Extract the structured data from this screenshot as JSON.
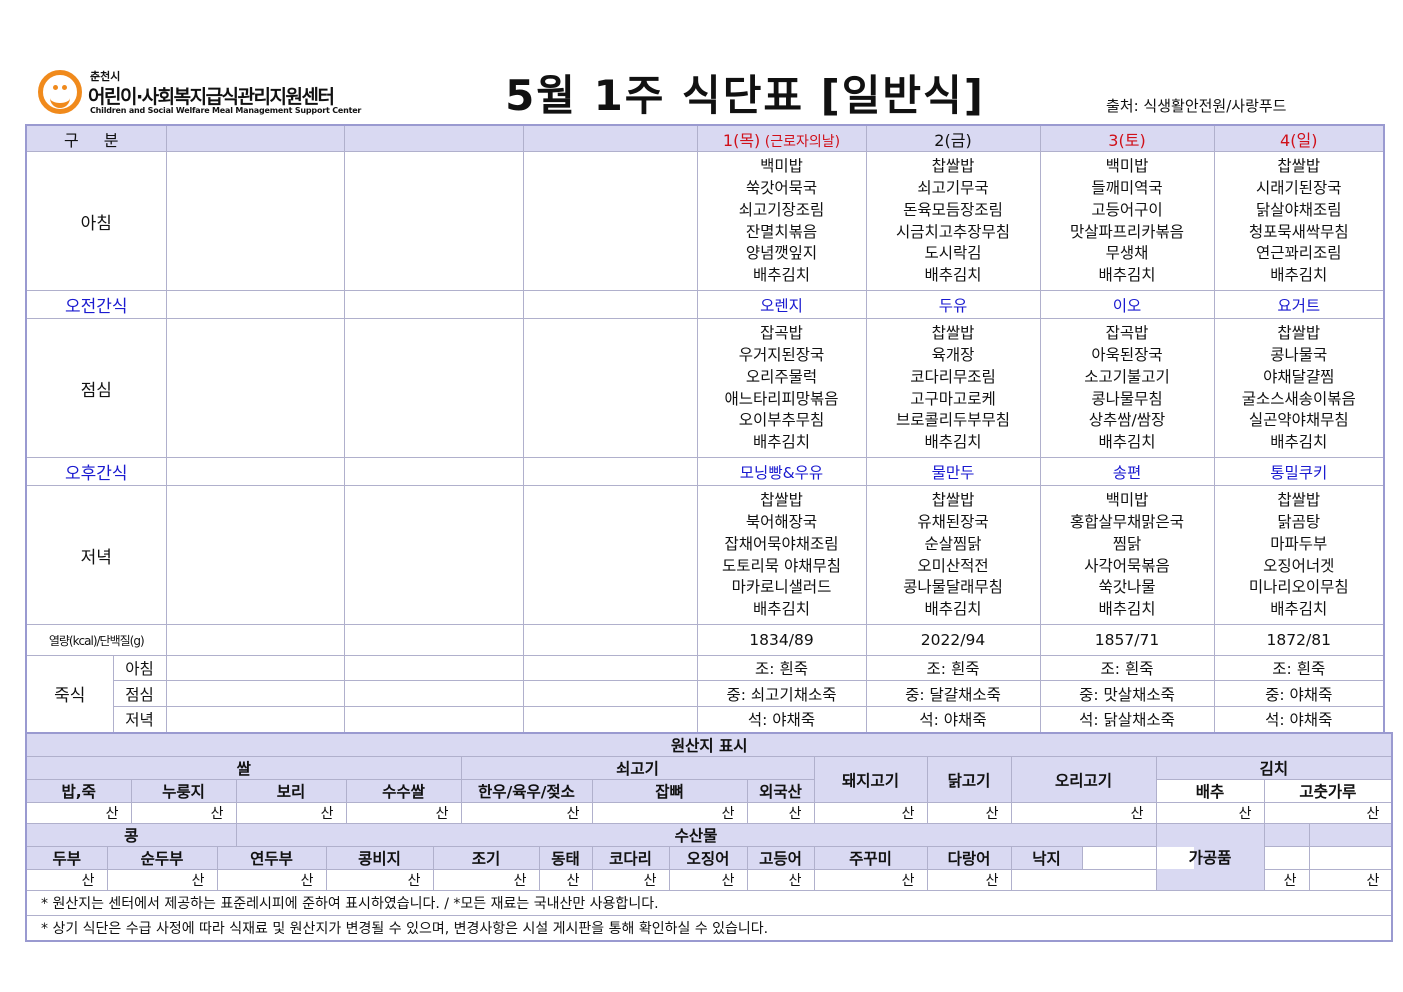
{
  "logo": {
    "city": "춘천시",
    "name": "어린이·사회복지급식관리지원센터",
    "english": "Children and Social Welfare Meal Management Support Center"
  },
  "title": "5월 1주 식단표 [일반식]",
  "source": "출처: 식생활안전원/사랑푸드",
  "header": {
    "division": "구 분",
    "days": [
      {
        "label": "1(목)",
        "note": " (근로자의날)",
        "color": "#d0101a"
      },
      {
        "label": "2(금)",
        "note": "",
        "color": "#111111"
      },
      {
        "label": "3(토)",
        "note": "",
        "color": "#d0101a"
      },
      {
        "label": "4(일)",
        "note": "",
        "color": "#d0101a"
      }
    ]
  },
  "rows": {
    "breakfast": {
      "label": "아침",
      "days": [
        [
          "백미밥",
          "쑥갓어묵국",
          "쇠고기장조림",
          "잔멸치볶음",
          "양념깻잎지",
          "배추김치"
        ],
        [
          "찹쌀밥",
          "쇠고기무국",
          "돈육모듬장조림",
          "시금치고추장무침",
          "도시락김",
          "배추김치"
        ],
        [
          "백미밥",
          "들깨미역국",
          "고등어구이",
          "맛살파프리카볶음",
          "무생채",
          "배추김치"
        ],
        [
          "찹쌀밥",
          "시래기된장국",
          "닭살야채조림",
          "청포묵새싹무침",
          "연근꽈리조림",
          "배추김치"
        ]
      ]
    },
    "am_snack": {
      "label": "오전간식",
      "days": [
        "오렌지",
        "두유",
        "이오",
        "요거트"
      ]
    },
    "lunch": {
      "label": "점심",
      "days": [
        [
          "잡곡밥",
          "우거지된장국",
          "오리주물럭",
          "애느타리피망볶음",
          "오이부추무침",
          "배추김치"
        ],
        [
          "찹쌀밥",
          "육개장",
          "코다리무조림",
          "고구마고로케",
          "브로콜리두부무침",
          "배추김치"
        ],
        [
          "잡곡밥",
          "아욱된장국",
          "소고기불고기",
          "콩나물무침",
          "상추쌈/쌈장",
          "배추김치"
        ],
        [
          "찹쌀밥",
          "콩나물국",
          "야채달걀찜",
          "굴소스새송이볶음",
          "실곤약야채무침",
          "배추김치"
        ]
      ]
    },
    "pm_snack": {
      "label": "오후간식",
      "days": [
        "모닝빵&우유",
        "물만두",
        "송편",
        "통밀쿠키"
      ]
    },
    "dinner": {
      "label": "저녁",
      "days": [
        [
          "찹쌀밥",
          "북어해장국",
          "잡채어묵야채조림",
          "도토리묵 야채무침",
          "마카로니샐러드",
          "배추김치"
        ],
        [
          "찹쌀밥",
          "유채된장국",
          "순살찜닭",
          "오미산적전",
          "콩나물달래무침",
          "배추김치"
        ],
        [
          "백미밥",
          "홍합살무채맑은국",
          "찜닭",
          "사각어묵볶음",
          "쑥갓나물",
          "배추김치"
        ],
        [
          "찹쌀밥",
          "닭곰탕",
          "마파두부",
          "오징어너겟",
          "미나리오이무침",
          "배추김치"
        ]
      ]
    },
    "nutrition": {
      "label": "열량(kcal)/단백질(g)",
      "days": [
        "1834/89",
        "2022/94",
        "1857/71",
        "1872/81"
      ]
    },
    "porridge": {
      "label": "죽식",
      "breakfast_label": "아침",
      "lunch_label": "점심",
      "dinner_label": "저녁",
      "breakfast": [
        "조: 흰죽",
        "조: 흰죽",
        "조: 흰죽",
        "조: 흰죽"
      ],
      "lunch": [
        "중: 쇠고기채소죽",
        "중: 달걀채소죽",
        "중: 맛살채소죽",
        "중: 야채죽"
      ],
      "dinner": [
        "석: 야채죽",
        "석: 야채죽",
        "석: 닭살채소죽",
        "석: 야채죽"
      ]
    }
  },
  "origin": {
    "title": "원산지 표시",
    "rice": "쌀",
    "beef": "쇠고기",
    "pork": "돼지고기",
    "chicken": "닭고기",
    "duck": "오리고기",
    "kimchi": "김치",
    "row1_items": [
      "밥,죽",
      "누룽지",
      "보리",
      "수수쌀",
      "한우/육우/젖소",
      "잡뼈",
      "외국산"
    ],
    "kimchi_items": [
      "배추",
      "고춧가루"
    ],
    "bean": "콩",
    "seafood": "수산물",
    "processed": "가공품",
    "row2_items": [
      "두부",
      "순두부",
      "연두부",
      "콩비지",
      "조기",
      "동태",
      "코다리",
      "오징어",
      "고등어",
      "주꾸미",
      "다랑어",
      "낙지"
    ],
    "san": "산"
  },
  "notes": [
    "* 원산지는 센터에서 제공하는 표준레시피에 준하여 표시하였습니다. / *모든 재료는 국내산만 사용합니다.",
    "* 상기 식단은 수급 사정에 따라 식재료 및 원산지가 변경될 수 있으며, 변경사항은 시설 게시판을 통해 확인하실 수 있습니다."
  ]
}
